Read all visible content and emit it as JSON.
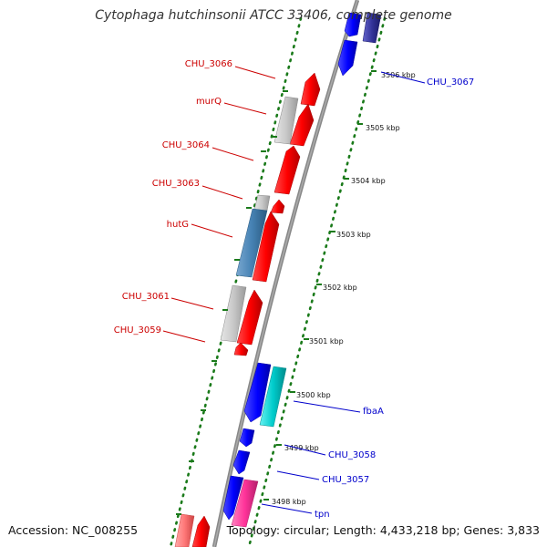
{
  "title": "Cytophaga hutchinsonii ATCC 33406, complete genome",
  "accession_text": "Accession: NC_008255",
  "summary_text": "Topology: circular; Length: 4,433,218 bp; Genes: 3,833",
  "colors": {
    "forward_cds": "#ff0000",
    "reverse_cds": "#0000ff",
    "forward_label": "#cc0000",
    "reverse_label": "#0000cc",
    "backbone": "#888888",
    "tick": "#1a7a1a",
    "grey_feature": "#c8c8c8",
    "steelblue_feature": "#4682b4",
    "cyan_feature": "#00cccc",
    "pink_feature": "#ff3399",
    "lightred_feature": "#ff7777",
    "navy_feature": "#333399"
  },
  "kbp_labels": [
    "3506 kbp",
    "3505 kbp",
    "3504 kbp",
    "3503 kbp",
    "3502 kbp",
    "3501 kbp",
    "3500 kbp",
    "3499 kbp",
    "3498 kbp"
  ],
  "forward_genes": [
    {
      "name": "CHU_3066"
    },
    {
      "name": "murQ"
    },
    {
      "name": "CHU_3064"
    },
    {
      "name": "CHU_3063"
    },
    {
      "name": "hutG"
    },
    {
      "name": "CHU_3061"
    },
    {
      "name": "CHU_3059"
    }
  ],
  "reverse_genes": [
    {
      "name": "CHU_3067"
    },
    {
      "name": "fbaA"
    },
    {
      "name": "CHU_3058"
    },
    {
      "name": "CHU_3057"
    },
    {
      "name": "tpn"
    }
  ]
}
